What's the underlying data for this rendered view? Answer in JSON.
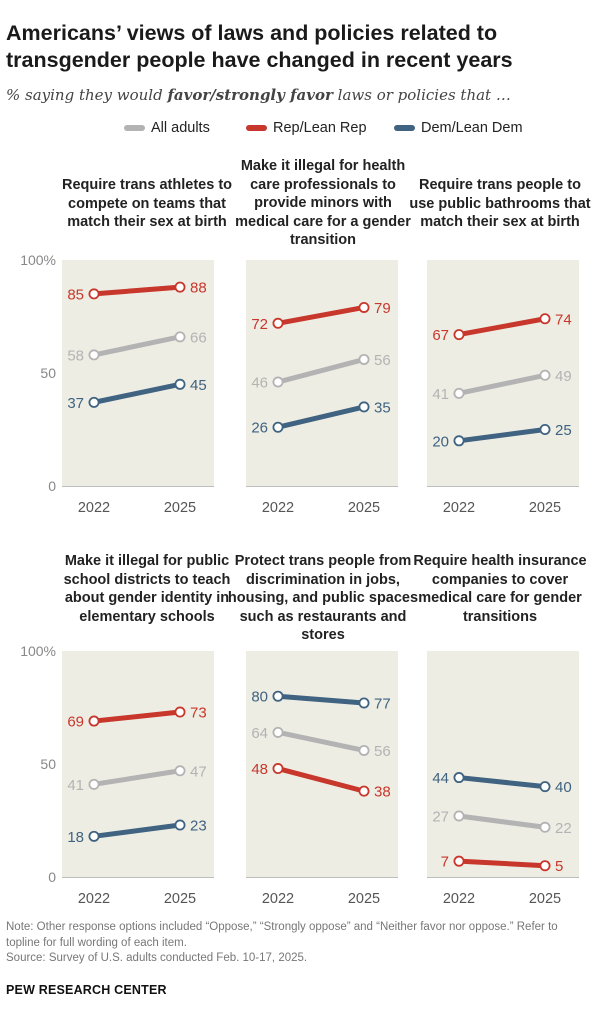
{
  "header": {
    "title": "Americans’ views of laws and policies related to transgender people have changed in recent years",
    "subtitle_before": "% saying they would ",
    "subtitle_emph": "favor/strongly favor",
    "subtitle_after": " laws or policies that …"
  },
  "legend": {
    "all": "All adults",
    "rep": "Rep/Lean Rep",
    "dem": "Dem/Lean Dem"
  },
  "colors": {
    "all": "#b3b3b3",
    "rep": "#c8372b",
    "dem": "#3f6380",
    "panel_bg": "#eeede4"
  },
  "chart_data": [
    {
      "type": "line",
      "title": "Require trans athletes to compete on teams that match their sex at birth",
      "x": [
        "2022",
        "2025"
      ],
      "ylim": [
        0,
        100
      ],
      "yticks": [
        "0",
        "50",
        "100%"
      ],
      "series": [
        {
          "name": "All adults",
          "key": "all",
          "values": [
            58,
            66
          ]
        },
        {
          "name": "Rep/Lean Rep",
          "key": "rep",
          "values": [
            85,
            88
          ]
        },
        {
          "name": "Dem/Lean Dem",
          "key": "dem",
          "values": [
            37,
            45
          ]
        }
      ]
    },
    {
      "type": "line",
      "title": "Make it illegal for health care professionals to provide minors with medical care for a gender transition",
      "x": [
        "2022",
        "2025"
      ],
      "ylim": [
        0,
        100
      ],
      "series": [
        {
          "name": "All adults",
          "key": "all",
          "values": [
            46,
            56
          ]
        },
        {
          "name": "Rep/Lean Rep",
          "key": "rep",
          "values": [
            72,
            79
          ]
        },
        {
          "name": "Dem/Lean Dem",
          "key": "dem",
          "values": [
            26,
            35
          ]
        }
      ]
    },
    {
      "type": "line",
      "title": "Require trans people to use public bathrooms that match their sex at birth",
      "x": [
        "2022",
        "2025"
      ],
      "ylim": [
        0,
        100
      ],
      "series": [
        {
          "name": "All adults",
          "key": "all",
          "values": [
            41,
            49
          ]
        },
        {
          "name": "Rep/Lean Rep",
          "key": "rep",
          "values": [
            67,
            74
          ]
        },
        {
          "name": "Dem/Lean Dem",
          "key": "dem",
          "values": [
            20,
            25
          ]
        }
      ]
    },
    {
      "type": "line",
      "title": "Make it illegal for public school districts to teach about gender identity in elementary schools",
      "x": [
        "2022",
        "2025"
      ],
      "ylim": [
        0,
        100
      ],
      "yticks": [
        "0",
        "50",
        "100%"
      ],
      "series": [
        {
          "name": "All adults",
          "key": "all",
          "values": [
            41,
            47
          ]
        },
        {
          "name": "Rep/Lean Rep",
          "key": "rep",
          "values": [
            69,
            73
          ]
        },
        {
          "name": "Dem/Lean Dem",
          "key": "dem",
          "values": [
            18,
            23
          ]
        }
      ]
    },
    {
      "type": "line",
      "title": "Protect trans people from discrimination in jobs, housing, and public spaces such as restaurants and stores",
      "x": [
        "2022",
        "2025"
      ],
      "ylim": [
        0,
        100
      ],
      "series": [
        {
          "name": "All adults",
          "key": "all",
          "values": [
            64,
            56
          ]
        },
        {
          "name": "Rep/Lean Rep",
          "key": "rep",
          "values": [
            48,
            38
          ]
        },
        {
          "name": "Dem/Lean Dem",
          "key": "dem",
          "values": [
            80,
            77
          ]
        }
      ]
    },
    {
      "type": "line",
      "title": "Require health insurance companies to cover medical care for gender transitions",
      "x": [
        "2022",
        "2025"
      ],
      "ylim": [
        0,
        100
      ],
      "series": [
        {
          "name": "All adults",
          "key": "all",
          "values": [
            27,
            22
          ]
        },
        {
          "name": "Rep/Lean Rep",
          "key": "rep",
          "values": [
            7,
            5
          ]
        },
        {
          "name": "Dem/Lean Dem",
          "key": "dem",
          "values": [
            44,
            40
          ]
        }
      ]
    }
  ],
  "footer": {
    "note": "Note: Other response options included “Oppose,” “Strongly oppose” and “Neither favor nor oppose.” Refer to topline for full wording of each item.",
    "source": "Source: Survey of U.S. adults conducted Feb. 10-17, 2025.",
    "org": "PEW RESEARCH CENTER"
  }
}
